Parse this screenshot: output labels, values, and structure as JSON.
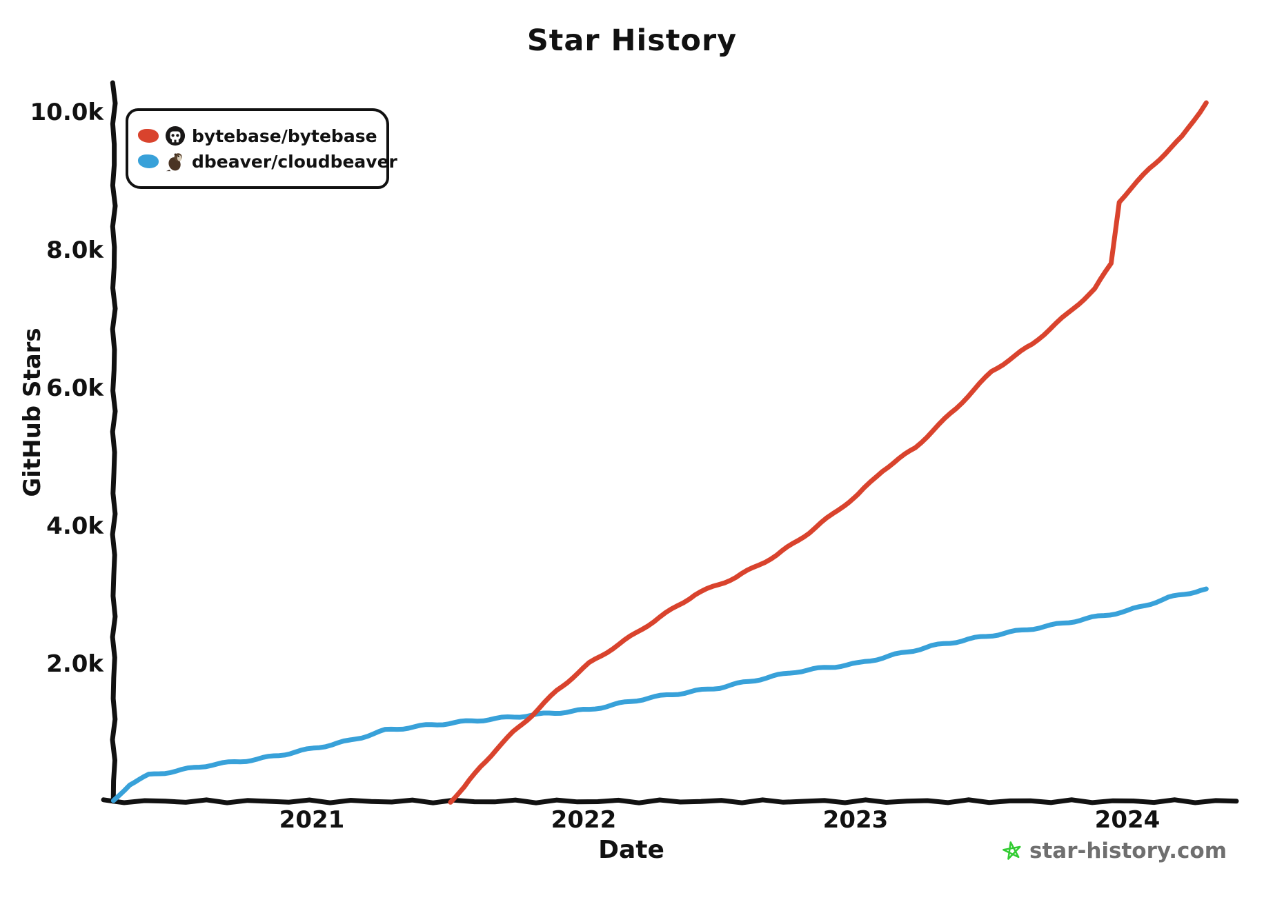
{
  "title": "Star History",
  "axes": {
    "x_label": "Date",
    "y_label": "GitHub Stars"
  },
  "watermark": {
    "label": "star-history.com",
    "star_color": "#32cc32",
    "text_color": "#6f6f6f"
  },
  "chart_data": {
    "type": "line",
    "title": "Star History",
    "xlabel": "Date",
    "ylabel": "GitHub Stars",
    "x_axis_unit": "decimal_year",
    "x_range": [
      2020.27,
      2024.4
    ],
    "y_range": [
      0,
      10300
    ],
    "grid": false,
    "legend_position": "top-left",
    "axis_color": "#111111",
    "x_ticks": [
      {
        "label": "2021",
        "value": 2021
      },
      {
        "label": "2022",
        "value": 2022
      },
      {
        "label": "2023",
        "value": 2023
      },
      {
        "label": "2024",
        "value": 2024
      }
    ],
    "y_ticks": [
      {
        "label": "2.0k",
        "value": 2000
      },
      {
        "label": "4.0k",
        "value": 4000
      },
      {
        "label": "6.0k",
        "value": 6000
      },
      {
        "label": "8.0k",
        "value": 8000
      },
      {
        "label": "10.0k",
        "value": 10000
      }
    ],
    "series": [
      {
        "name": "bytebase/bytebase",
        "color": "#d9432d",
        "avatar": "bytebase-logo",
        "points_year_stars": [
          [
            2021.51,
            0
          ],
          [
            2021.56,
            200
          ],
          [
            2021.62,
            500
          ],
          [
            2021.68,
            760
          ],
          [
            2021.74,
            1000
          ],
          [
            2021.81,
            1250
          ],
          [
            2021.9,
            1600
          ],
          [
            2022.02,
            2000
          ],
          [
            2022.15,
            2330
          ],
          [
            2022.28,
            2670
          ],
          [
            2022.41,
            3000
          ],
          [
            2022.56,
            3250
          ],
          [
            2022.71,
            3570
          ],
          [
            2022.83,
            3900
          ],
          [
            2022.96,
            4300
          ],
          [
            2023.01,
            4450
          ],
          [
            2023.1,
            4800
          ],
          [
            2023.22,
            5130
          ],
          [
            2023.37,
            5700
          ],
          [
            2023.5,
            6230
          ],
          [
            2023.65,
            6630
          ],
          [
            2023.78,
            7070
          ],
          [
            2023.88,
            7430
          ],
          [
            2023.94,
            7800
          ],
          [
            2023.97,
            8700
          ],
          [
            2024.08,
            9170
          ],
          [
            2024.2,
            9630
          ],
          [
            2024.29,
            10130
          ]
        ]
      },
      {
        "name": "dbeaver/cloudbeaver",
        "color": "#38a1d9",
        "avatar": "dbeaver-logo",
        "points_year_stars": [
          [
            2020.27,
            0
          ],
          [
            2020.33,
            250
          ],
          [
            2020.4,
            380
          ],
          [
            2020.5,
            440
          ],
          [
            2020.63,
            530
          ],
          [
            2020.8,
            610
          ],
          [
            2020.96,
            730
          ],
          [
            2021.14,
            880
          ],
          [
            2021.27,
            1030
          ],
          [
            2021.42,
            1100
          ],
          [
            2021.63,
            1180
          ],
          [
            2021.81,
            1250
          ],
          [
            2022.02,
            1330
          ],
          [
            2022.24,
            1500
          ],
          [
            2022.5,
            1650
          ],
          [
            2022.78,
            1880
          ],
          [
            2023.01,
            2000
          ],
          [
            2023.28,
            2250
          ],
          [
            2023.46,
            2380
          ],
          [
            2023.72,
            2550
          ],
          [
            2024.0,
            2760
          ],
          [
            2024.15,
            2950
          ],
          [
            2024.29,
            3080
          ]
        ]
      }
    ]
  }
}
